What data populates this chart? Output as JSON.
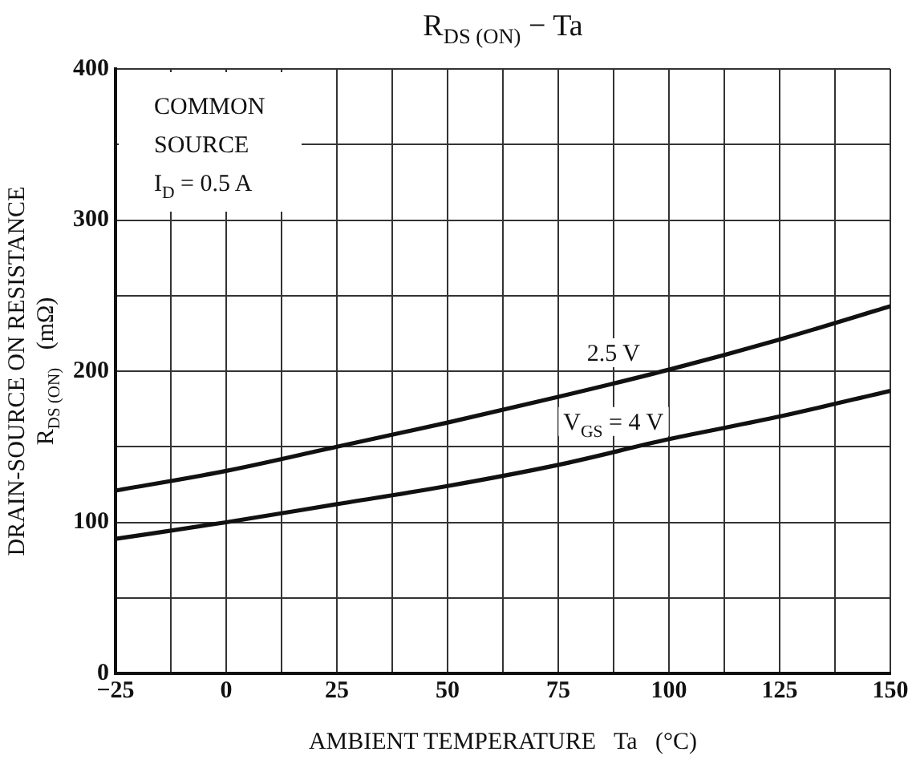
{
  "chart_data": {
    "type": "line",
    "title": "R$_{DS (ON)}$ − Ta",
    "xlabel": "AMBIENT TEMPERATURE   Ta   (°C)",
    "ylabel": "DRAIN-SOURCE ON RESISTANCE\nR$_{DS (ON)}$   (mΩ)",
    "x": [
      -25,
      0,
      25,
      50,
      75,
      100,
      125,
      150
    ],
    "series": [
      {
        "name": "2.5 V",
        "color": "#111111",
        "values": [
          121,
          134,
          150,
          166,
          183,
          201,
          221,
          243
        ]
      },
      {
        "name": "V$_{GS}$ = 4 V",
        "color": "#111111",
        "values": [
          89,
          100,
          112,
          124,
          138,
          155,
          170,
          187
        ]
      }
    ],
    "xlim": [
      -25,
      150
    ],
    "xticks": [
      -25,
      {
        "value": -12.5,
        "label": null
      },
      0,
      {
        "value": 12.5,
        "label": null
      },
      25,
      {
        "value": 37.5,
        "label": null
      },
      50,
      {
        "value": 62.5,
        "label": null
      },
      75,
      {
        "value": 87.5,
        "label": null
      },
      100,
      {
        "value": 112.5,
        "label": null
      },
      125,
      {
        "value": 137.5,
        "label": null
      },
      150
    ],
    "ylim": [
      0,
      400
    ],
    "yticks": [
      0,
      {
        "value": 50,
        "label": null
      },
      100,
      {
        "value": 150,
        "label": null
      },
      200,
      {
        "value": 250,
        "label": null
      },
      300,
      {
        "value": 350,
        "label": null
      },
      400
    ],
    "grid": true,
    "legend": false,
    "marker": "none",
    "line_style": "solid",
    "annotations": [
      "COMMON",
      "SOURCE",
      "I$_{D}$ = 0.5 A"
    ]
  }
}
